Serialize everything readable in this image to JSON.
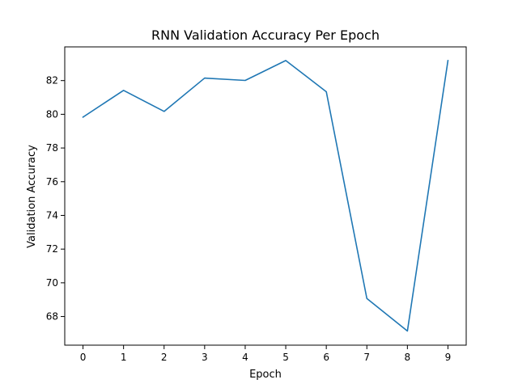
{
  "chart_data": {
    "type": "line",
    "title": "RNN Validation Accuracy Per Epoch",
    "xlabel": "Epoch",
    "ylabel": "Validation Accuracy",
    "x": [
      0,
      1,
      2,
      3,
      4,
      5,
      6,
      7,
      8,
      9
    ],
    "x_ticks": [
      "0",
      "1",
      "2",
      "3",
      "4",
      "5",
      "6",
      "7",
      "8",
      "9"
    ],
    "y_ticks": [
      "68",
      "70",
      "72",
      "74",
      "76",
      "78",
      "80",
      "82"
    ],
    "xlim": [
      -0.45,
      9.45
    ],
    "ylim": [
      66.3,
      84.0
    ],
    "grid": false,
    "series": [
      {
        "color": "#1f77b4",
        "values": [
          79.83,
          81.42,
          80.17,
          82.15,
          82.01,
          83.19,
          81.34,
          69.07,
          67.14,
          83.19
        ]
      }
    ]
  }
}
